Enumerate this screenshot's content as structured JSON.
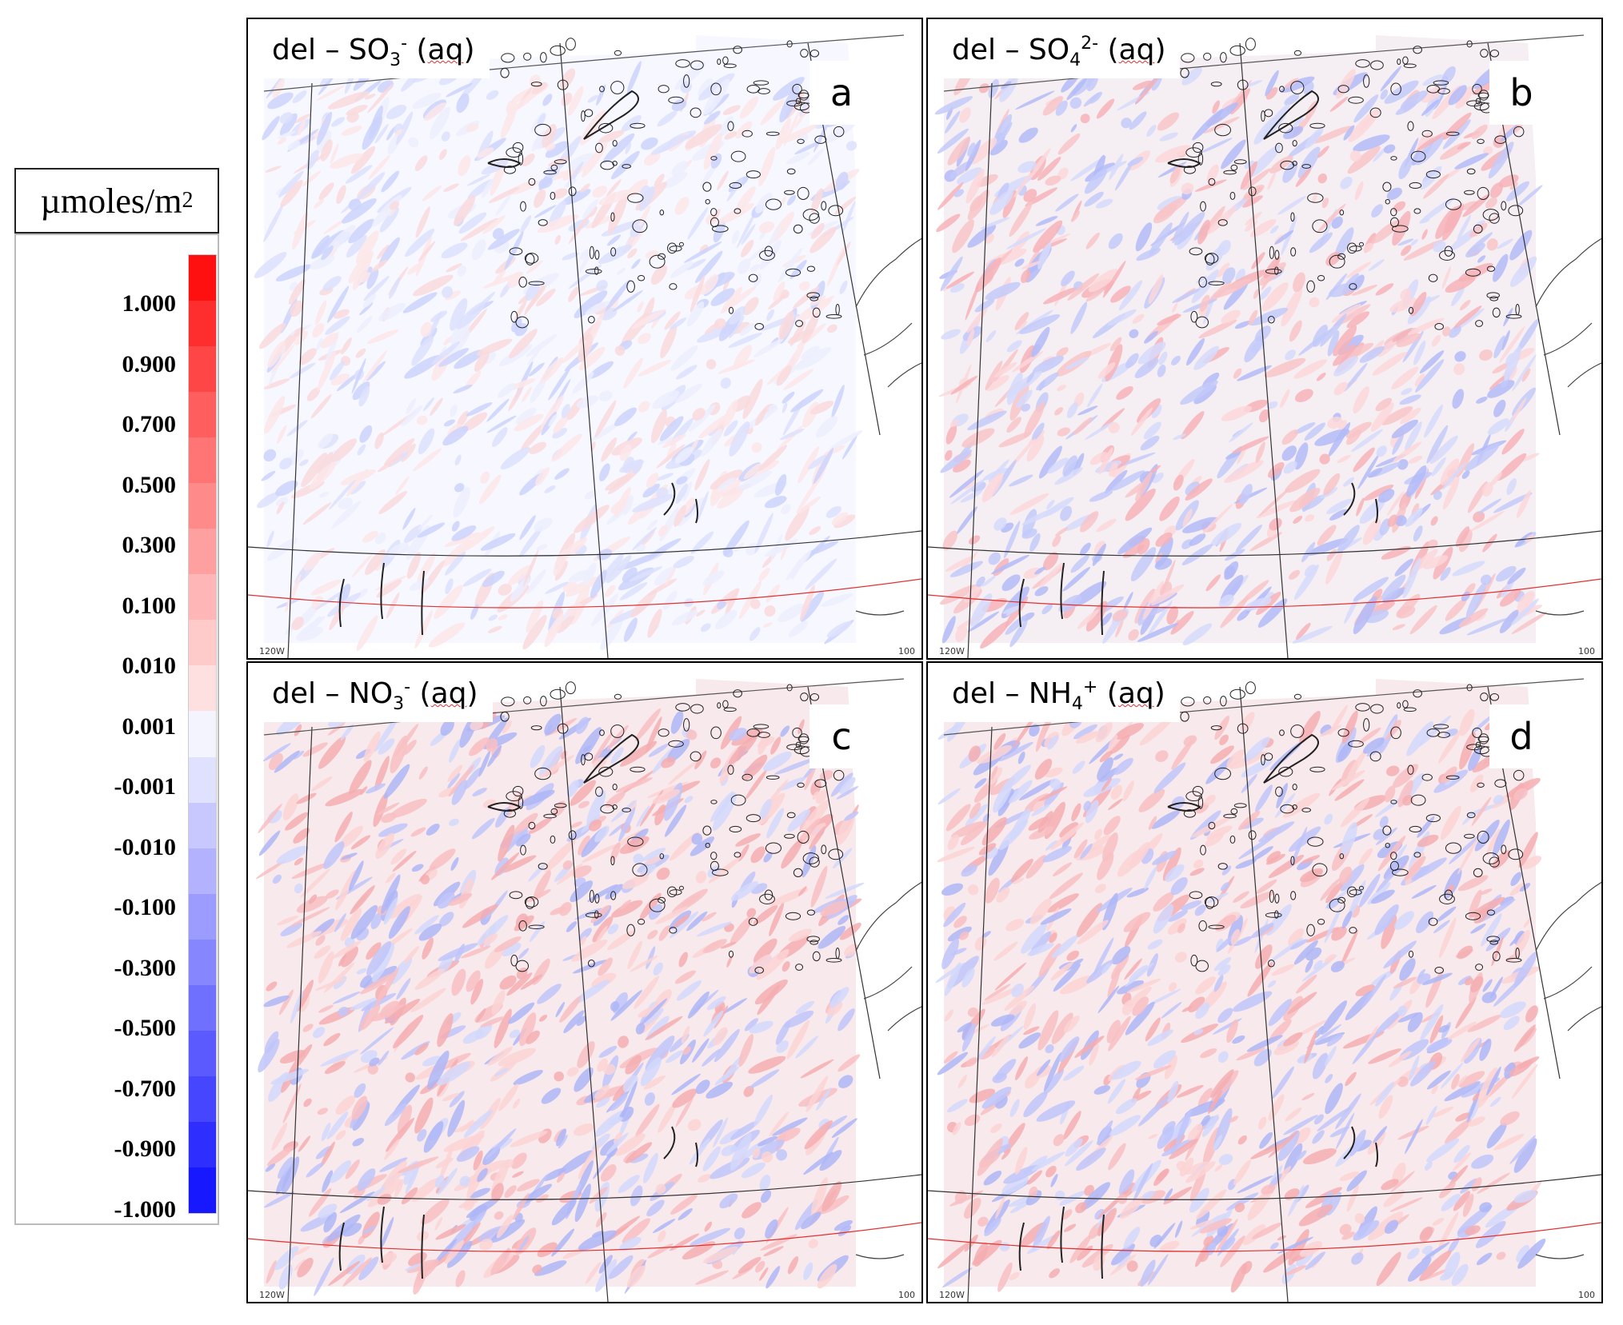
{
  "legend": {
    "unit": "µmoles/m",
    "unit_sup": "2",
    "ticks": [
      "1.000",
      "0.900",
      "0.700",
      "0.500",
      "0.300",
      "0.100",
      "0.010",
      "0.001",
      "-0.001",
      "-0.010",
      "-0.100",
      "-0.300",
      "-0.500",
      "-0.700",
      "-0.900",
      "-1.000"
    ],
    "colors": [
      "#ff1010",
      "#ff2e2e",
      "#ff4646",
      "#ff5e5e",
      "#ff7474",
      "#ff8a8a",
      "#ffa0a0",
      "#ffb6b6",
      "#ffcaca",
      "#ffe0e0",
      "#f4f4ff",
      "#e0e0ff",
      "#c8c8ff",
      "#b2b2ff",
      "#9c9cff",
      "#8686ff",
      "#7070ff",
      "#5a5aff",
      "#4646ff",
      "#2e2eff",
      "#1818ff"
    ]
  },
  "panels": [
    {
      "id": "a",
      "letter": "a",
      "title_pre": "del – SO",
      "title_sub": "3",
      "title_sup": "-",
      "title_post": " (",
      "title_wavy": "aq",
      "title_end": ")",
      "pattern": "mostly-light",
      "lon_left": "120W",
      "lon_right": "100"
    },
    {
      "id": "b",
      "letter": "b",
      "title_pre": "del – SO",
      "title_sub": "4",
      "title_sup": "2-",
      "title_post": " (",
      "title_wavy": "aq",
      "title_end": ")",
      "pattern": "mixed",
      "lon_left": "120W",
      "lon_right": "100"
    },
    {
      "id": "c",
      "letter": "c",
      "title_pre": "del – NO",
      "title_sub": "3",
      "title_sup": "-",
      "title_post": " (",
      "title_wavy": "aq",
      "title_end": ")",
      "pattern": "mixed-red",
      "lon_left": "120W",
      "lon_right": "100"
    },
    {
      "id": "d",
      "letter": "d",
      "title_pre": "del – NH",
      "title_sub": "4",
      "title_sup": "+",
      "title_post": " (",
      "title_wavy": "aq",
      "title_end": ")",
      "pattern": "mixed-red",
      "lon_left": "120W",
      "lon_right": "100"
    }
  ]
}
